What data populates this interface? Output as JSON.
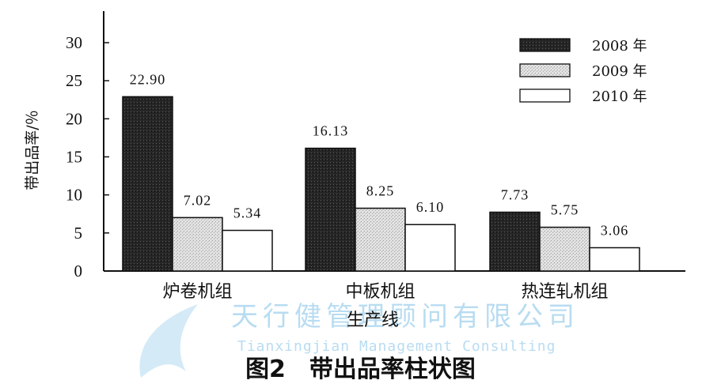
{
  "chart_data": {
    "type": "bar",
    "categories": [
      "炉卷机组",
      "中板机组",
      "热连轧机组"
    ],
    "series": [
      {
        "name": "2008 年",
        "values": [
          22.9,
          16.13,
          7.73
        ],
        "labels": [
          "22.90",
          "16.13",
          "7.73"
        ],
        "color": "#1e1e1e"
      },
      {
        "name": "2009 年",
        "values": [
          7.02,
          8.25,
          5.75
        ],
        "labels": [
          "7.02",
          "8.25",
          "5.75"
        ],
        "color": "#cfcfcf"
      },
      {
        "name": "2010 年",
        "values": [
          5.34,
          6.1,
          3.06
        ],
        "labels": [
          "5.34",
          "6.10",
          "3.06"
        ],
        "color": "#ffffff"
      }
    ],
    "ylabel": "带出品率/％",
    "xlabel": "生产线",
    "ylim": [
      0,
      30
    ],
    "yticks": [
      "0",
      "5",
      "10",
      "15",
      "20",
      "25",
      "30"
    ],
    "legend_position": "top-right",
    "grid": false
  },
  "caption": "图2　带出品率柱状图",
  "watermark": {
    "name_cn": "天行健管理顾问有限公司",
    "name_en": "Tianxingjian Management Consulting"
  }
}
